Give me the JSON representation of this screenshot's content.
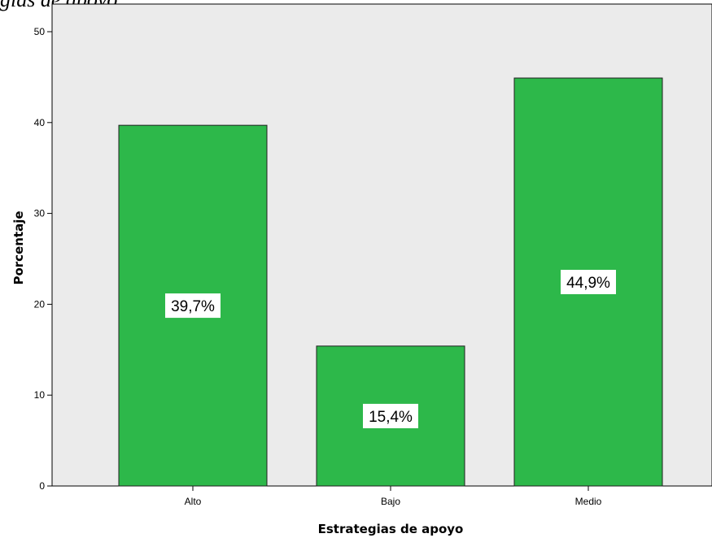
{
  "figure": {
    "caption_fragment": "gias de apoyo"
  },
  "colors": {
    "plot_background": "#ebebeb",
    "bar_fill": "#2db84a",
    "bar_stroke": "#1f1f1f",
    "label_box": "#ffffff"
  },
  "chart_data": {
    "type": "bar",
    "categories": [
      "Alto",
      "Bajo",
      "Medio"
    ],
    "values": [
      39.7,
      15.4,
      44.9
    ],
    "value_labels": [
      "39,7%",
      "15,4%",
      "44,9%"
    ],
    "title": "",
    "xlabel": "Estrategias de apoyo",
    "ylabel": "Porcentaje",
    "ylim": [
      0,
      50
    ],
    "yticks": [
      0,
      10,
      20,
      30,
      40,
      50
    ],
    "grid": false,
    "legend": "none"
  }
}
